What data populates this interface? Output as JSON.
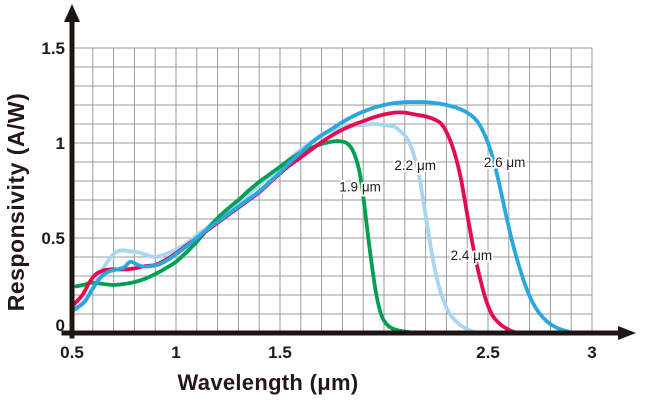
{
  "figure": {
    "background": "#ffffff",
    "text_color": "#231815",
    "grid_color": "#9b9b9b",
    "axis_color": "#1d1613"
  },
  "chart_data": {
    "type": "line",
    "title": "",
    "xlabel": "Wavelength (μm)",
    "ylabel": "Responsivity (A/W)",
    "xlim": [
      0.5,
      3.0
    ],
    "ylim": [
      0,
      1.5
    ],
    "grid": {
      "on": true,
      "step_x": 0.1,
      "step_y": 0.1
    },
    "legend_position": "none",
    "x_ticks": [
      {
        "value": 0.5,
        "label": "0.5"
      },
      {
        "value": 1.0,
        "label": "1"
      },
      {
        "value": 1.5,
        "label": "1.5"
      },
      {
        "value": 2.5,
        "label": "2.5"
      },
      {
        "value": 3.0,
        "label": "3"
      }
    ],
    "y_ticks": [
      {
        "value": 0,
        "label": "0",
        "dy": -8
      },
      {
        "value": 0.5,
        "label": "0.5"
      },
      {
        "value": 1.0,
        "label": "1"
      },
      {
        "value": 1.5,
        "label": "1.5"
      }
    ],
    "series": [
      {
        "name": "2.2 μm cutoff",
        "color": "#aad5f0",
        "points": [
          [
            0.505,
            0.115
          ],
          [
            0.56,
            0.16
          ],
          [
            0.6,
            0.235
          ],
          [
            0.64,
            0.32
          ],
          [
            0.68,
            0.39
          ],
          [
            0.71,
            0.425
          ],
          [
            0.74,
            0.435
          ],
          [
            0.78,
            0.43
          ],
          [
            0.82,
            0.425
          ],
          [
            0.86,
            0.41
          ],
          [
            0.9,
            0.4
          ],
          [
            0.95,
            0.415
          ],
          [
            1.0,
            0.44
          ],
          [
            1.05,
            0.47
          ],
          [
            1.1,
            0.515
          ],
          [
            1.15,
            0.555
          ],
          [
            1.2,
            0.6
          ],
          [
            1.25,
            0.645
          ],
          [
            1.3,
            0.685
          ],
          [
            1.35,
            0.73
          ],
          [
            1.4,
            0.78
          ],
          [
            1.45,
            0.825
          ],
          [
            1.5,
            0.87
          ],
          [
            1.55,
            0.92
          ],
          [
            1.6,
            0.965
          ],
          [
            1.65,
            1.005
          ],
          [
            1.7,
            1.045
          ],
          [
            1.75,
            1.065
          ],
          [
            1.8,
            1.08
          ],
          [
            1.85,
            1.09
          ],
          [
            1.9,
            1.095
          ],
          [
            1.95,
            1.1
          ],
          [
            2.0,
            1.095
          ],
          [
            2.05,
            1.085
          ],
          [
            2.08,
            1.06
          ],
          [
            2.11,
            1.025
          ],
          [
            2.14,
            0.95
          ],
          [
            2.17,
            0.82
          ],
          [
            2.2,
            0.62
          ],
          [
            2.23,
            0.42
          ],
          [
            2.26,
            0.26
          ],
          [
            2.29,
            0.16
          ],
          [
            2.32,
            0.095
          ],
          [
            2.36,
            0.048
          ],
          [
            2.4,
            0.02
          ],
          [
            2.43,
            0.007
          ],
          [
            2.46,
            0.0
          ]
        ]
      },
      {
        "name": "1.9 μm cutoff",
        "color": "#00a050",
        "points": [
          [
            0.52,
            0.245
          ],
          [
            0.56,
            0.255
          ],
          [
            0.6,
            0.265
          ],
          [
            0.65,
            0.258
          ],
          [
            0.7,
            0.253
          ],
          [
            0.75,
            0.258
          ],
          [
            0.8,
            0.268
          ],
          [
            0.85,
            0.285
          ],
          [
            0.9,
            0.31
          ],
          [
            0.95,
            0.34
          ],
          [
            1.0,
            0.375
          ],
          [
            1.05,
            0.425
          ],
          [
            1.1,
            0.48
          ],
          [
            1.15,
            0.545
          ],
          [
            1.2,
            0.605
          ],
          [
            1.25,
            0.655
          ],
          [
            1.3,
            0.7
          ],
          [
            1.35,
            0.75
          ],
          [
            1.4,
            0.795
          ],
          [
            1.45,
            0.835
          ],
          [
            1.5,
            0.875
          ],
          [
            1.55,
            0.915
          ],
          [
            1.6,
            0.95
          ],
          [
            1.65,
            0.975
          ],
          [
            1.7,
            0.995
          ],
          [
            1.74,
            1.005
          ],
          [
            1.78,
            1.01
          ],
          [
            1.82,
            1.0
          ],
          [
            1.85,
            0.96
          ],
          [
            1.88,
            0.86
          ],
          [
            1.9,
            0.72
          ],
          [
            1.92,
            0.54
          ],
          [
            1.94,
            0.37
          ],
          [
            1.96,
            0.22
          ],
          [
            1.98,
            0.12
          ],
          [
            2.0,
            0.065
          ],
          [
            2.03,
            0.03
          ],
          [
            2.07,
            0.013
          ],
          [
            2.11,
            0.006
          ],
          [
            2.15,
            0.0
          ]
        ]
      },
      {
        "name": "2.4 μm cutoff",
        "color": "#e60a50",
        "points": [
          [
            0.505,
            0.145
          ],
          [
            0.55,
            0.2
          ],
          [
            0.58,
            0.26
          ],
          [
            0.61,
            0.305
          ],
          [
            0.64,
            0.325
          ],
          [
            0.68,
            0.335
          ],
          [
            0.72,
            0.335
          ],
          [
            0.76,
            0.335
          ],
          [
            0.8,
            0.34
          ],
          [
            0.85,
            0.352
          ],
          [
            0.9,
            0.358
          ],
          [
            0.95,
            0.385
          ],
          [
            1.0,
            0.42
          ],
          [
            1.05,
            0.46
          ],
          [
            1.1,
            0.5
          ],
          [
            1.15,
            0.54
          ],
          [
            1.2,
            0.58
          ],
          [
            1.25,
            0.62
          ],
          [
            1.3,
            0.66
          ],
          [
            1.35,
            0.7
          ],
          [
            1.4,
            0.74
          ],
          [
            1.45,
            0.79
          ],
          [
            1.5,
            0.84
          ],
          [
            1.55,
            0.885
          ],
          [
            1.6,
            0.925
          ],
          [
            1.65,
            0.965
          ],
          [
            1.7,
            1.005
          ],
          [
            1.75,
            1.04
          ],
          [
            1.8,
            1.07
          ],
          [
            1.85,
            1.095
          ],
          [
            1.9,
            1.115
          ],
          [
            1.95,
            1.135
          ],
          [
            2.0,
            1.15
          ],
          [
            2.05,
            1.16
          ],
          [
            2.1,
            1.16
          ],
          [
            2.15,
            1.15
          ],
          [
            2.2,
            1.14
          ],
          [
            2.25,
            1.12
          ],
          [
            2.28,
            1.095
          ],
          [
            2.31,
            1.035
          ],
          [
            2.34,
            0.945
          ],
          [
            2.37,
            0.81
          ],
          [
            2.4,
            0.625
          ],
          [
            2.43,
            0.445
          ],
          [
            2.46,
            0.295
          ],
          [
            2.49,
            0.175
          ],
          [
            2.52,
            0.095
          ],
          [
            2.56,
            0.045
          ],
          [
            2.6,
            0.017
          ],
          [
            2.64,
            0.0
          ]
        ]
      },
      {
        "name": "2.6 μm cutoff",
        "color": "#29a7e1",
        "points": [
          [
            0.505,
            0.12
          ],
          [
            0.56,
            0.165
          ],
          [
            0.6,
            0.235
          ],
          [
            0.64,
            0.295
          ],
          [
            0.68,
            0.325
          ],
          [
            0.72,
            0.335
          ],
          [
            0.75,
            0.345
          ],
          [
            0.78,
            0.375
          ],
          [
            0.81,
            0.362
          ],
          [
            0.84,
            0.35
          ],
          [
            0.88,
            0.352
          ],
          [
            0.92,
            0.362
          ],
          [
            0.96,
            0.385
          ],
          [
            1.0,
            0.415
          ],
          [
            1.05,
            0.455
          ],
          [
            1.1,
            0.5
          ],
          [
            1.15,
            0.545
          ],
          [
            1.2,
            0.585
          ],
          [
            1.25,
            0.625
          ],
          [
            1.3,
            0.665
          ],
          [
            1.35,
            0.705
          ],
          [
            1.4,
            0.745
          ],
          [
            1.45,
            0.795
          ],
          [
            1.5,
            0.845
          ],
          [
            1.55,
            0.9
          ],
          [
            1.6,
            0.95
          ],
          [
            1.65,
            1.0
          ],
          [
            1.7,
            1.04
          ],
          [
            1.75,
            1.075
          ],
          [
            1.8,
            1.11
          ],
          [
            1.85,
            1.14
          ],
          [
            1.9,
            1.165
          ],
          [
            1.95,
            1.185
          ],
          [
            2.0,
            1.2
          ],
          [
            2.05,
            1.21
          ],
          [
            2.1,
            1.215
          ],
          [
            2.15,
            1.215
          ],
          [
            2.2,
            1.215
          ],
          [
            2.25,
            1.21
          ],
          [
            2.3,
            1.2
          ],
          [
            2.35,
            1.185
          ],
          [
            2.4,
            1.16
          ],
          [
            2.44,
            1.125
          ],
          [
            2.47,
            1.075
          ],
          [
            2.5,
            1.0
          ],
          [
            2.53,
            0.895
          ],
          [
            2.56,
            0.755
          ],
          [
            2.59,
            0.605
          ],
          [
            2.62,
            0.465
          ],
          [
            2.65,
            0.35
          ],
          [
            2.68,
            0.25
          ],
          [
            2.71,
            0.17
          ],
          [
            2.75,
            0.1
          ],
          [
            2.79,
            0.055
          ],
          [
            2.83,
            0.028
          ],
          [
            2.87,
            0.012
          ],
          [
            2.91,
            0.0
          ]
        ]
      }
    ],
    "annotations": [
      {
        "text": "1.9 μm",
        "x": 1.885,
        "y": 0.77
      },
      {
        "text": "2.2 μm",
        "x": 2.15,
        "y": 0.885
      },
      {
        "text": "2.4 μm",
        "x": 2.42,
        "y": 0.41
      },
      {
        "text": "2.6 μm",
        "x": 2.58,
        "y": 0.9
      }
    ]
  }
}
